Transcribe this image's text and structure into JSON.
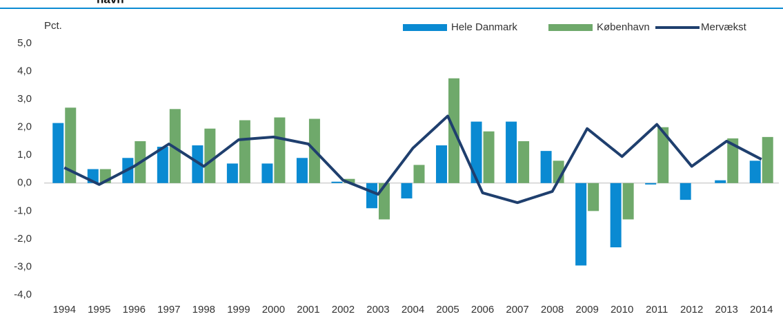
{
  "header": {
    "title": "havn"
  },
  "chart_data": {
    "type": "bar",
    "y_label": "Pct.",
    "categories": [
      "1994",
      "1995",
      "1996",
      "1997",
      "1998",
      "1999",
      "2000",
      "2001",
      "2002",
      "2003",
      "2004",
      "2005",
      "2006",
      "2007",
      "2008",
      "2009",
      "2010",
      "2011",
      "2012",
      "2013",
      "2014"
    ],
    "series": [
      {
        "name": "Hele Danmark",
        "color": "#0a8ad2",
        "values": [
          2.15,
          0.5,
          0.9,
          1.3,
          1.35,
          0.7,
          0.7,
          0.9,
          0.05,
          -0.9,
          -0.55,
          1.35,
          2.2,
          2.2,
          1.15,
          -2.95,
          -2.3,
          -0.05,
          -0.6,
          0.1,
          0.8
        ]
      },
      {
        "name": "København",
        "color": "#6fa96b",
        "values": [
          2.7,
          0.5,
          1.5,
          2.65,
          1.95,
          2.25,
          2.35,
          2.3,
          0.15,
          -1.3,
          0.65,
          3.75,
          1.85,
          1.5,
          0.8,
          -1.0,
          -1.3,
          2.0,
          0.0,
          1.6,
          1.65
        ]
      },
      {
        "name": "Mervækst",
        "color": "#1f3f6e",
        "type": "line",
        "values": [
          0.55,
          -0.05,
          0.6,
          1.4,
          0.6,
          1.55,
          1.65,
          1.4,
          0.1,
          -0.4,
          1.25,
          2.4,
          -0.35,
          -0.7,
          -0.3,
          1.95,
          0.95,
          2.1,
          0.6,
          1.5,
          0.85
        ]
      }
    ],
    "ylim": [
      -4,
      5
    ],
    "yticks": [
      {
        "value": -4,
        "label": "-4,0"
      },
      {
        "value": -3,
        "label": "-3,0"
      },
      {
        "value": -2,
        "label": "-2,0"
      },
      {
        "value": -1,
        "label": "-1,0"
      },
      {
        "value": 0,
        "label": "0,0"
      },
      {
        "value": 1,
        "label": "1,0"
      },
      {
        "value": 2,
        "label": "2,0"
      },
      {
        "value": 3,
        "label": "3,0"
      },
      {
        "value": 4,
        "label": "4,0"
      },
      {
        "value": 5,
        "label": "5,0"
      }
    ],
    "grid": false,
    "legend": "top-right"
  }
}
